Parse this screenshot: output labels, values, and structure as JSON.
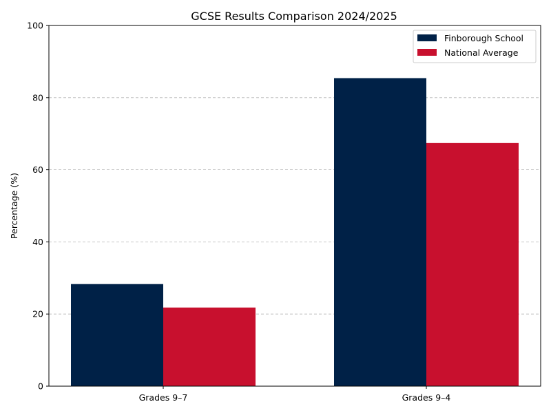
{
  "chart_data": {
    "type": "bar",
    "title": "GCSE Results Comparison 2024/2025",
    "xlabel": "",
    "ylabel": "Percentage (%)",
    "categories": [
      "Grades 9–7",
      "Grades 9–4"
    ],
    "series": [
      {
        "name": "Finborough School",
        "values": [
          28.3,
          85.4
        ],
        "color": "#002147"
      },
      {
        "name": "National Average",
        "values": [
          21.8,
          67.4
        ],
        "color": "#C8102E"
      }
    ],
    "ylim": [
      0,
      100
    ],
    "yticks": [
      "0",
      "20",
      "40",
      "60",
      "80",
      "100"
    ],
    "grid": "horizontal-dashed",
    "legend_position": "top-right"
  }
}
